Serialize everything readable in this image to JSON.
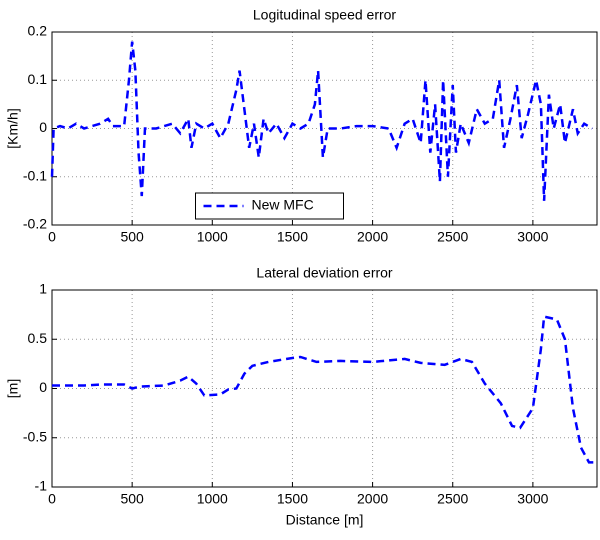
{
  "chart_data": [
    {
      "type": "line",
      "title": "Logitudinal speed error",
      "ylabel": "[Km/h]",
      "xlim": [
        0,
        3400
      ],
      "xticks": [
        0,
        500,
        1000,
        1500,
        2000,
        2500,
        3000
      ],
      "ylim": [
        -0.2,
        0.2
      ],
      "yticks": [
        -0.2,
        -0.1,
        0,
        0.1,
        0.2
      ],
      "grid": true,
      "legend": "lower center",
      "x": [
        0,
        10,
        50,
        100,
        150,
        200,
        250,
        300,
        350,
        380,
        450,
        480,
        500,
        520,
        540,
        560,
        580,
        650,
        700,
        750,
        800,
        850,
        870,
        900,
        950,
        1000,
        1050,
        1100,
        1150,
        1170,
        1200,
        1230,
        1260,
        1290,
        1320,
        1350,
        1400,
        1450,
        1500,
        1550,
        1600,
        1640,
        1660,
        1690,
        1720,
        1800,
        1900,
        2000,
        2100,
        2150,
        2200,
        2250,
        2300,
        2330,
        2360,
        2390,
        2420,
        2440,
        2470,
        2500,
        2520,
        2550,
        2600,
        2650,
        2700,
        2750,
        2790,
        2820,
        2860,
        2900,
        2930,
        2970,
        3020,
        3050,
        3070,
        3100,
        3130,
        3170,
        3200,
        3250,
        3280,
        3320,
        3370
      ],
      "series": [
        {
          "name": "New MFC",
          "color": "#0000ff",
          "values": [
            -0.1,
            0,
            0.005,
            0,
            0.01,
            0,
            0.005,
            0.01,
            0.02,
            0.005,
            0.005,
            0.1,
            0.18,
            0.12,
            -0.05,
            -0.14,
            0,
            0,
            0.005,
            0.01,
            -0.01,
            0.02,
            -0.04,
            0.01,
            0,
            0.01,
            -0.02,
            0.01,
            0.08,
            0.12,
            0.04,
            -0.04,
            0.01,
            -0.06,
            0.02,
            -0.01,
            0.01,
            -0.02,
            0.01,
            0,
            0.01,
            0.05,
            0.12,
            -0.06,
            0,
            0,
            0.005,
            0.005,
            0,
            -0.04,
            0.01,
            0.02,
            -0.03,
            0.1,
            -0.05,
            0.05,
            -0.11,
            0.1,
            -0.1,
            0.09,
            -0.05,
            0.01,
            -0.03,
            0.04,
            0.01,
            0.02,
            0.1,
            -0.04,
            0.02,
            0.09,
            -0.02,
            0.03,
            0.1,
            0.05,
            -0.15,
            0.07,
            0,
            0.05,
            -0.03,
            0.04,
            -0.01,
            0.01,
            0
          ]
        }
      ]
    },
    {
      "type": "line",
      "title": "Lateral deviation error",
      "ylabel": "[m]",
      "xlabel": "Distance [m]",
      "xlim": [
        0,
        3400
      ],
      "xticks": [
        0,
        500,
        1000,
        1500,
        2000,
        2500,
        3000
      ],
      "ylim": [
        -1,
        1
      ],
      "yticks": [
        -1,
        -0.5,
        0,
        0.5,
        1
      ],
      "grid": true,
      "x": [
        0,
        200,
        300,
        450,
        500,
        550,
        700,
        800,
        850,
        900,
        950,
        1050,
        1100,
        1150,
        1200,
        1250,
        1350,
        1500,
        1550,
        1650,
        1800,
        2000,
        2200,
        2300,
        2450,
        2550,
        2620,
        2700,
        2800,
        2870,
        2920,
        3000,
        3050,
        3070,
        3150,
        3200,
        3250,
        3300,
        3350,
        3400
      ],
      "series": [
        {
          "name": "New MFC",
          "color": "#0000ff",
          "values": [
            0.03,
            0.03,
            0.04,
            0.04,
            0,
            0.02,
            0.03,
            0.08,
            0.12,
            0.05,
            -0.07,
            -0.06,
            -0.01,
            0,
            0.15,
            0.23,
            0.27,
            0.31,
            0.32,
            0.27,
            0.28,
            0.27,
            0.3,
            0.26,
            0.24,
            0.3,
            0.27,
            0.05,
            -0.15,
            -0.38,
            -0.4,
            -0.2,
            0.4,
            0.73,
            0.7,
            0.5,
            -0.2,
            -0.6,
            -0.75,
            -0.75
          ]
        }
      ]
    }
  ]
}
